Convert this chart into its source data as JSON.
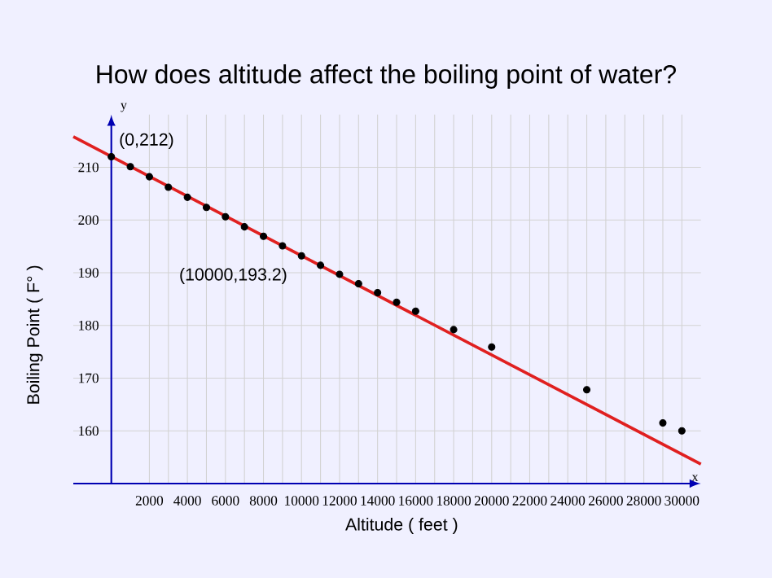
{
  "chart_data": {
    "type": "scatter",
    "title": "How does altitude affect the boiling point of water?",
    "xlabel": "Altitude  ( feet )",
    "ylabel": "Boiling Point  ( F° )",
    "xlim": [
      -2000,
      31000
    ],
    "ylim": [
      150,
      220
    ],
    "xticks": [
      2000,
      4000,
      6000,
      8000,
      10000,
      12000,
      14000,
      16000,
      18000,
      20000,
      22000,
      24000,
      26000,
      28000,
      30000
    ],
    "yticks": [
      160,
      170,
      180,
      190,
      200,
      210
    ],
    "grid": true,
    "series": [
      {
        "color": "#000000",
        "marker": "circle",
        "x": [
          0,
          1000,
          2000,
          3000,
          4000,
          5000,
          6000,
          7000,
          8000,
          9000,
          10000,
          11000,
          12000,
          13000,
          14000,
          15000,
          16000,
          18000,
          20000,
          25000,
          29000,
          30000
        ],
        "values": [
          212,
          210.1,
          208.2,
          206.2,
          204.3,
          202.4,
          200.6,
          198.7,
          196.9,
          195.1,
          193.2,
          191.4,
          189.7,
          187.9,
          186.2,
          184.4,
          182.7,
          179.2,
          175.9,
          167.8,
          161.5,
          160
        ]
      },
      {
        "type": "line",
        "marker": "none",
        "color": "#e02020",
        "x": [
          -2000,
          31000
        ],
        "values": [
          215.8,
          153.7
        ]
      }
    ],
    "annotations": [
      {
        "text": "(0,212)",
        "x": 0,
        "y": 212
      },
      {
        "text": "(10000,193.2)",
        "x": 10000,
        "y": 193.2
      },
      "y",
      "x"
    ]
  }
}
